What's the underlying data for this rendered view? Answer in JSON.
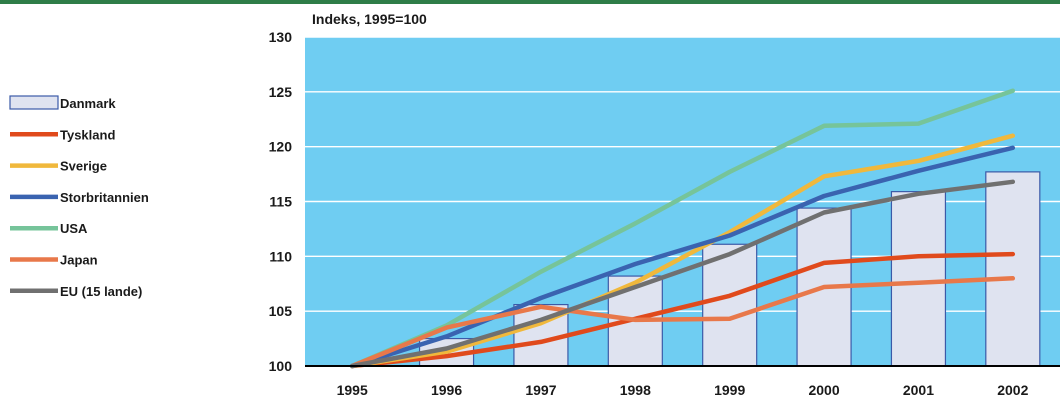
{
  "colors": {
    "topbar": "#2e7d48",
    "plot_bg": "#6fcdf2",
    "gridline": "#ffffff",
    "bar_fill": "#dfe3f0",
    "bar_stroke": "#3b5aa8",
    "Danmark": "#dfe3f0",
    "Tyskland": "#e04a1c",
    "Sverige": "#f0b83c",
    "Storbritannien": "#3a63b0",
    "USA": "#76c49a",
    "Japan": "#e8784a",
    "EU (15 lande)": "#707070"
  },
  "chart_data": {
    "type": "bar",
    "title": "Indeks, 1995=100",
    "xlabel": "",
    "ylabel": "Indeks, 1995=100",
    "categories": [
      "1995",
      "1996",
      "1997",
      "1998",
      "1999",
      "2000",
      "2001",
      "2002"
    ],
    "ylim": [
      100,
      130
    ],
    "yticks": [
      100,
      105,
      110,
      115,
      120,
      125,
      130
    ],
    "grid": true,
    "legend_position": "left",
    "series": [
      {
        "name": "Danmark",
        "type": "bar",
        "values": [
          100,
          102.5,
          105.6,
          108.2,
          111.1,
          114.4,
          115.9,
          117.7
        ]
      },
      {
        "name": "Tyskland",
        "type": "line",
        "values": [
          100,
          100.9,
          102.2,
          104.3,
          106.4,
          109.4,
          110.0,
          110.2
        ]
      },
      {
        "name": "Sverige",
        "type": "line",
        "values": [
          100,
          101.3,
          103.9,
          107.6,
          112.2,
          117.3,
          118.7,
          121.0
        ]
      },
      {
        "name": "Storbritannien",
        "type": "line",
        "values": [
          100,
          102.7,
          106.2,
          109.3,
          111.9,
          115.5,
          117.8,
          119.9
        ]
      },
      {
        "name": "USA",
        "type": "line",
        "values": [
          100,
          103.7,
          108.6,
          113.0,
          117.7,
          121.9,
          122.1,
          125.1
        ]
      },
      {
        "name": "Japan",
        "type": "line",
        "values": [
          100,
          103.5,
          105.4,
          104.2,
          104.3,
          107.2,
          107.6,
          108.0
        ]
      },
      {
        "name": "EU (15 lande)",
        "type": "line",
        "values": [
          100,
          101.6,
          104.2,
          107.2,
          110.2,
          114.0,
          115.7,
          116.8
        ]
      }
    ]
  }
}
